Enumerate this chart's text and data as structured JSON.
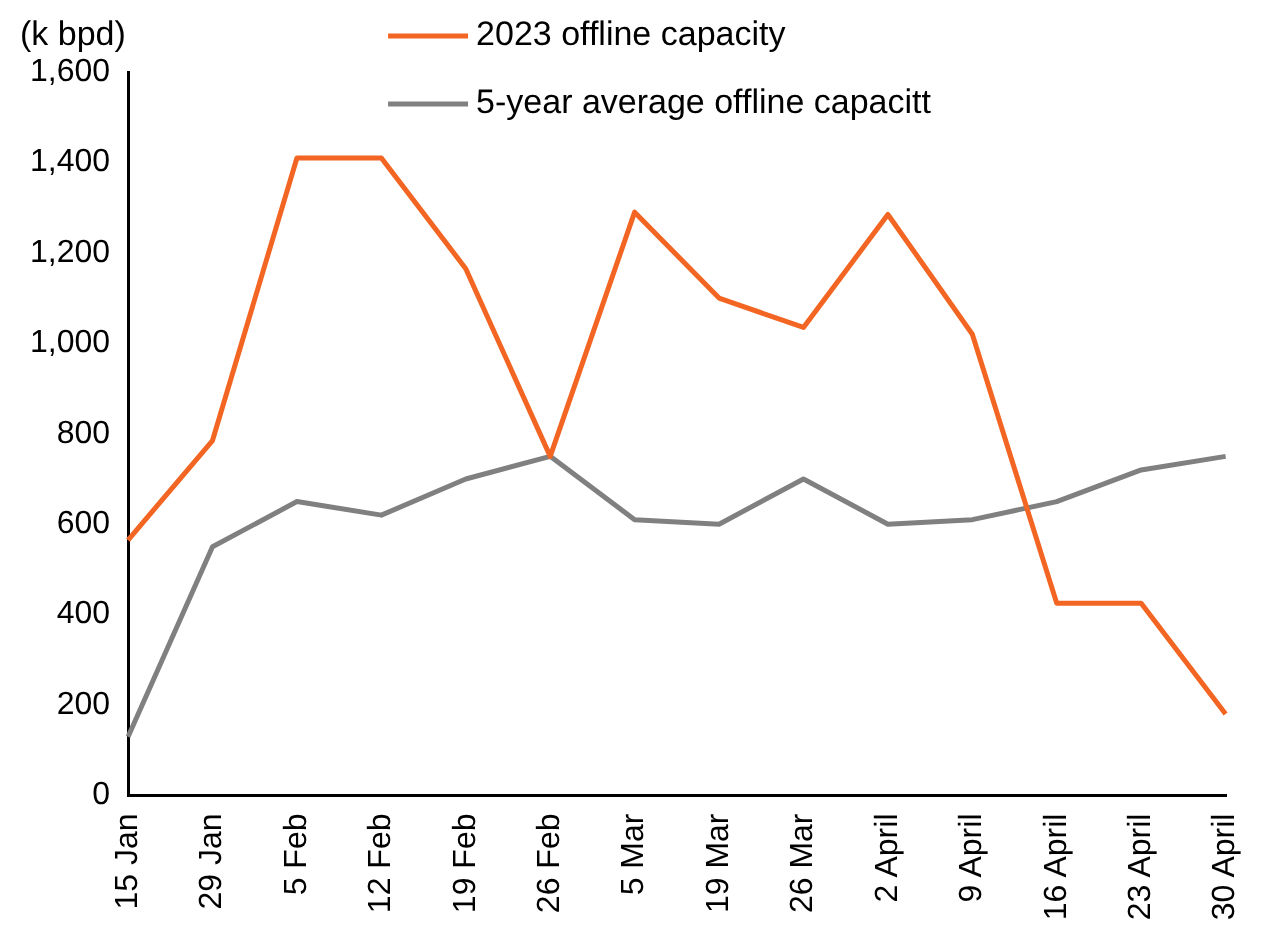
{
  "chart_data": {
    "type": "line",
    "ylabel": "(k bpd)",
    "categories": [
      "15 Jan",
      "29 Jan",
      "5 Feb",
      "12 Feb",
      "19 Feb",
      "26 Feb",
      "5 Mar",
      "19 Mar",
      "26 Mar",
      "2 April",
      "9 April",
      "16 April",
      "23 April",
      "30 April"
    ],
    "series": [
      {
        "name": "2023 offline capacity",
        "color": "#f26522",
        "values": [
          565,
          785,
          1410,
          1410,
          1165,
          750,
          1290,
          1100,
          1035,
          1285,
          1020,
          425,
          425,
          180
        ]
      },
      {
        "name": "5-year average offline capacitt",
        "color": "#808080",
        "values": [
          130,
          550,
          650,
          620,
          700,
          750,
          610,
          600,
          700,
          600,
          610,
          650,
          720,
          750
        ]
      }
    ],
    "ylim": [
      0,
      1600
    ],
    "yticks": [
      0,
      200,
      400,
      600,
      800,
      {
        "value": 1000,
        "label": "1,000"
      },
      {
        "value": 1200,
        "label": "1,200"
      },
      {
        "value": 1400,
        "label": "1,400"
      },
      {
        "value": 1600,
        "label": "1,600"
      }
    ],
    "grid": false,
    "legend": "top",
    "marker": "none",
    "line_style": "solid"
  }
}
